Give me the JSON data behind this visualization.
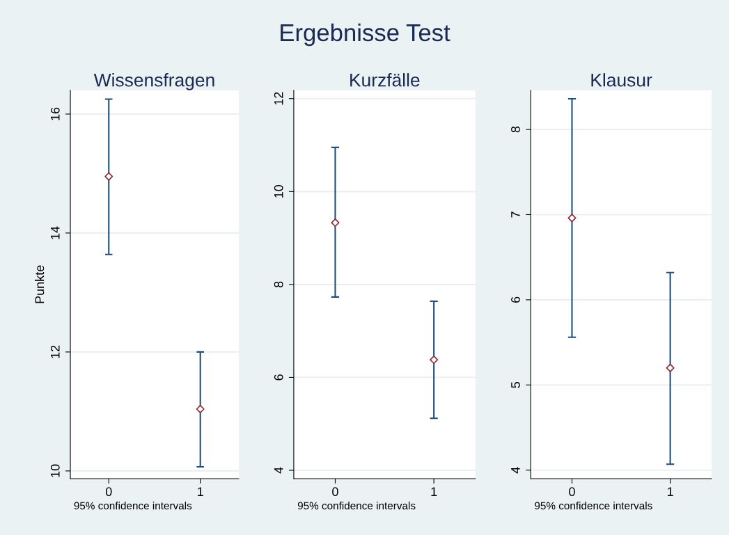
{
  "chart_data": [
    {
      "type": "other",
      "title": "Ergebnisse Test"
    },
    {
      "type": "scatter",
      "title": "Wissensfragen",
      "ylabel": "Punkte",
      "categories": [
        "0",
        "1"
      ],
      "ylim": [
        9.87,
        16.4
      ],
      "yticks": [
        10,
        12,
        14,
        16
      ],
      "grid": "y",
      "marker": "diamond",
      "annotations": [
        "95% confidence intervals"
      ],
      "series": [
        {
          "color": "#8c2d3a",
          "values": [
            14.95,
            11.04
          ],
          "errors": [
            [
              13.64,
              16.25
            ],
            [
              10.07,
              12.0
            ]
          ]
        }
      ]
    },
    {
      "type": "scatter",
      "title": "Kurzfälle",
      "categories": [
        "0",
        "1"
      ],
      "ylim": [
        3.82,
        12.18
      ],
      "yticks": [
        4,
        6,
        8,
        10,
        12
      ],
      "grid": "y",
      "marker": "diamond",
      "annotations": [
        "95% confidence intervals"
      ],
      "series": [
        {
          "color": "#8c2d3a",
          "values": [
            9.33,
            6.38
          ],
          "errors": [
            [
              7.73,
              10.95
            ],
            [
              5.12,
              7.64
            ]
          ]
        }
      ]
    },
    {
      "type": "scatter",
      "title": "Klausur",
      "categories": [
        "0",
        "1"
      ],
      "ylim": [
        3.9,
        8.46
      ],
      "yticks": [
        4,
        5,
        6,
        7,
        8
      ],
      "grid": "y",
      "marker": "diamond",
      "annotations": [
        "95% confidence intervals"
      ],
      "series": [
        {
          "color": "#8c2d3a",
          "values": [
            6.96,
            5.2
          ],
          "errors": [
            [
              5.56,
              8.36
            ],
            [
              4.07,
              6.32
            ]
          ]
        }
      ]
    }
  ]
}
